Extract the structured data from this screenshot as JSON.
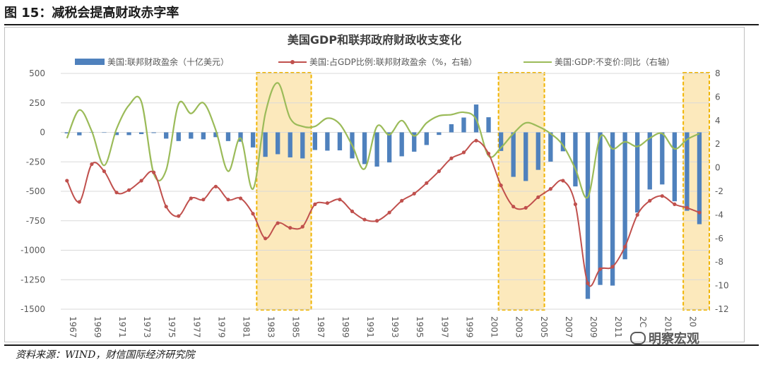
{
  "figure_title": "图 15：减税会提高财政赤字率",
  "source": "资料来源：WIND，财信国际经济研究院",
  "watermark": "明察宏观",
  "colors": {
    "bar": "#4f81bd",
    "ratio": "#c0504d",
    "gdp": "#9bbb59",
    "highlight_fill": "#fbe5b0",
    "highlight_border": "#f0b400"
  },
  "chart_data": {
    "type": "bar",
    "title": "美国GDP和联邦政府财政收支变化",
    "xlabel": "",
    "ylabel": "",
    "x": [
      1967,
      1968,
      1969,
      1970,
      1971,
      1972,
      1973,
      1974,
      1975,
      1976,
      1977,
      1978,
      1979,
      1980,
      1981,
      1982,
      1983,
      1984,
      1985,
      1986,
      1987,
      1988,
      1989,
      1990,
      1991,
      1992,
      1993,
      1994,
      1995,
      1996,
      1997,
      1998,
      1999,
      2000,
      2001,
      2002,
      2003,
      2004,
      2005,
      2006,
      2007,
      2008,
      2009,
      2010,
      2011,
      2012,
      2013,
      2014,
      2015,
      2016,
      2017,
      2018
    ],
    "x_tick_labels": [
      "1967",
      "1969",
      "1971",
      "1973",
      "1975",
      "1977",
      "1979",
      "1981",
      "1983",
      "1985",
      "1987",
      "1989",
      "1991",
      "1993",
      "1995",
      "1997",
      "1999",
      "2001",
      "2003",
      "2005",
      "2007",
      "2009",
      "2011",
      "2C",
      "2015",
      "20"
    ],
    "ylim_left": [
      -1500,
      500
    ],
    "yticks_left": [
      "500",
      "250",
      "0",
      "-250",
      "-500",
      "-750",
      "-1000",
      "-1250",
      "-1500"
    ],
    "ylim_right": [
      -12,
      8
    ],
    "yticks_right": [
      "8",
      "6",
      "4",
      "2",
      "0",
      "-2",
      "-4",
      "-6",
      "-8",
      "-10",
      "-12"
    ],
    "series": [
      {
        "name": "美国:联邦财政盈余（十亿美元）",
        "type": "bar",
        "axis": "left",
        "values": [
          -8.6,
          -25.2,
          3.2,
          -2.8,
          -23,
          -23.4,
          -14.9,
          -6.1,
          -53.2,
          -73.7,
          -53.7,
          -59.2,
          -40.7,
          -73.8,
          -79,
          -128,
          -207.8,
          -185.4,
          -212.3,
          -221.2,
          -149.7,
          -155.2,
          -152.6,
          -221,
          -269.2,
          -290.3,
          -255.1,
          -203.2,
          -164,
          -107.4,
          -21.9,
          69.3,
          125.6,
          236.2,
          128.2,
          -157.8,
          -377.6,
          -412.7,
          -318.3,
          -248.2,
          -160.7,
          -458.6,
          -1412.7,
          -1294.4,
          -1300,
          -1076.6,
          -679.8,
          -484.6,
          -442,
          -584.7,
          -665.4,
          -779
        ]
      },
      {
        "name": "美国:占GDP比例:联邦财政盈余（%，右轴）",
        "type": "line",
        "axis": "right",
        "values": [
          -1.1,
          -2.9,
          0.3,
          -0.3,
          -2.1,
          -1.9,
          -1.1,
          -0.4,
          -3.3,
          -4.1,
          -2.6,
          -2.7,
          -1.6,
          -2.7,
          -2.6,
          -3.9,
          -6,
          -4.7,
          -5.1,
          -5,
          -3.1,
          -3,
          -2.7,
          -3.7,
          -4.4,
          -4.5,
          -3.8,
          -2.8,
          -2.2,
          -1.3,
          -0.3,
          0.8,
          1.3,
          2.3,
          1.2,
          -1.5,
          -3.3,
          -3.4,
          -2.5,
          -1.8,
          -1.1,
          -3.1,
          -9.8,
          -8.6,
          -8.4,
          -6.7,
          -4,
          -2.8,
          -2.4,
          -3.1,
          -3.4,
          -3.8
        ]
      },
      {
        "name": "美国:GDP:不变价:同比（右轴）",
        "type": "line",
        "axis": "right",
        "values": [
          2.5,
          4.9,
          3.1,
          0.2,
          3.3,
          5.3,
          5.6,
          -0.5,
          -0.2,
          5.4,
          4.6,
          5.5,
          3.2,
          -0.3,
          2.5,
          -1.8,
          4.6,
          7.2,
          4.2,
          3.5,
          3.5,
          4.2,
          3.7,
          1.9,
          -0.1,
          3.5,
          2.8,
          4,
          2.7,
          3.8,
          4.4,
          4.5,
          4.7,
          4.1,
          1,
          1.7,
          2.9,
          3.8,
          3.5,
          2.9,
          1.9,
          -0.1,
          -2.5,
          2.6,
          1.6,
          2.2,
          1.8,
          2.5,
          2.9,
          1.6,
          2.4,
          2.9
        ]
      }
    ],
    "highlight_ranges": [
      [
        1982.3,
        1986.7
      ],
      [
        2001.8,
        2005.5
      ],
      [
        2016.7,
        2018.8
      ]
    ]
  }
}
